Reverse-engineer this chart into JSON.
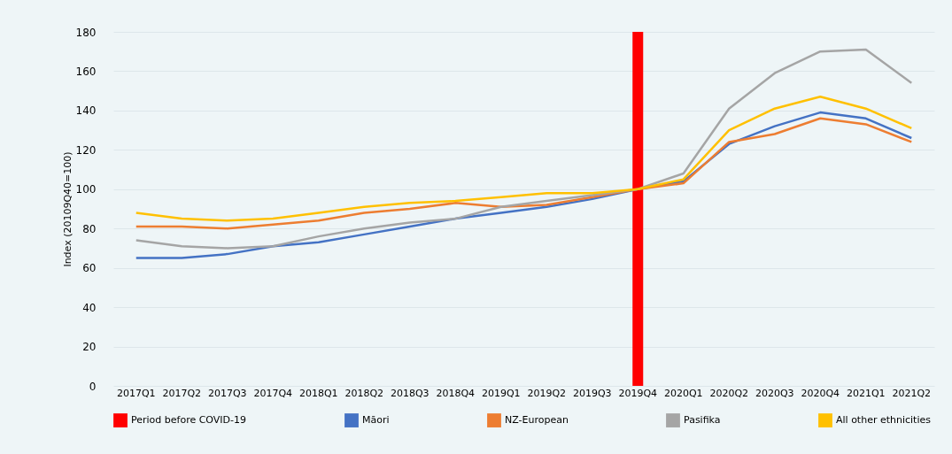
{
  "chart_data": {
    "type": "line",
    "ylabel": "Index (20109Q40=100)",
    "categories": [
      "2017Q1",
      "2017Q2",
      "2017Q3",
      "2017Q4",
      "2018Q1",
      "2018Q2",
      "2018Q3",
      "2018Q4",
      "2019Q1",
      "2019Q2",
      "2019Q3",
      "2019Q4",
      "2020Q1",
      "2020Q2",
      "2020Q3",
      "2020Q4",
      "2021Q1",
      "2021Q2"
    ],
    "series": [
      {
        "name": "Period before COVID-19",
        "type": "bar",
        "color": "#ff0000",
        "values": [
          null,
          null,
          null,
          null,
          null,
          null,
          null,
          null,
          null,
          null,
          null,
          180,
          null,
          null,
          null,
          null,
          null,
          null
        ]
      },
      {
        "name": "Māori",
        "color": "#4472c4",
        "values": [
          65,
          65,
          67,
          71,
          73,
          77,
          81,
          85,
          88,
          91,
          95,
          100,
          104,
          123,
          132,
          139,
          136,
          126
        ]
      },
      {
        "name": "NZ-European",
        "color": "#ed7d31",
        "values": [
          81,
          81,
          80,
          82,
          84,
          88,
          90,
          93,
          91,
          92,
          96,
          100,
          103,
          124,
          128,
          136,
          133,
          124
        ]
      },
      {
        "name": "Pasifika",
        "color": "#a5a5a5",
        "values": [
          74,
          71,
          70,
          71,
          76,
          80,
          83,
          85,
          91,
          94,
          97,
          100,
          108,
          141,
          159,
          170,
          171,
          154
        ]
      },
      {
        "name": "All other ethnicities",
        "color": "#ffc000",
        "values": [
          88,
          85,
          84,
          85,
          88,
          91,
          93,
          94,
          96,
          98,
          98,
          100,
          105,
          130,
          141,
          147,
          141,
          131
        ]
      }
    ],
    "ylim": [
      0,
      180
    ],
    "yticks": [
      0,
      20,
      40,
      60,
      80,
      100,
      120,
      140,
      160,
      180
    ],
    "grid": "y",
    "legend": "bottom",
    "marker": "none",
    "line_style": "solid"
  }
}
